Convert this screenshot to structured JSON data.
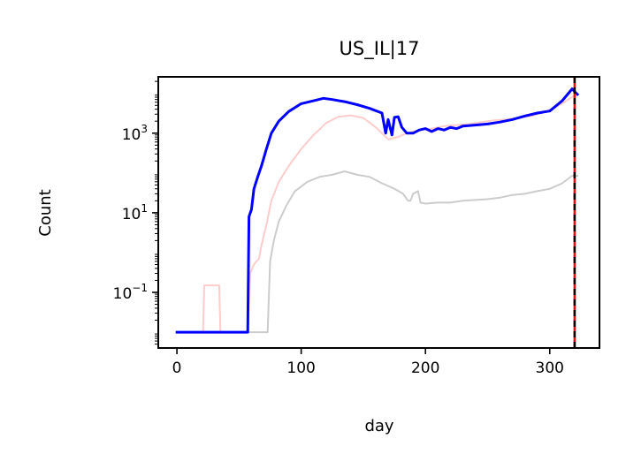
{
  "chart_data": {
    "type": "line",
    "title": "US_IL|17",
    "xlabel": "day",
    "ylabel": "Count",
    "xlim": [
      -15,
      340
    ],
    "ylim": [
      0.004,
      26000
    ],
    "yscale": "log",
    "grid": false,
    "x_ticks": [
      {
        "value": 0,
        "label": "0"
      },
      {
        "value": 100,
        "label": "100"
      },
      {
        "value": 200,
        "label": "200"
      },
      {
        "value": 300,
        "label": "300"
      }
    ],
    "y_ticks": [
      {
        "value": 0.1,
        "base": "10",
        "exp": "−1"
      },
      {
        "value": 10,
        "base": "10",
        "exp": "1"
      },
      {
        "value": 1000,
        "base": "10",
        "exp": "3"
      }
    ],
    "series": [
      {
        "color": "#cccccc",
        "width": 2,
        "points": [
          [
            -1,
            0.01
          ],
          [
            73,
            0.01
          ],
          [
            75,
            0.6
          ],
          [
            78,
            2
          ],
          [
            82,
            6
          ],
          [
            88,
            15
          ],
          [
            95,
            35
          ],
          [
            105,
            60
          ],
          [
            115,
            80
          ],
          [
            125,
            90
          ],
          [
            135,
            110
          ],
          [
            145,
            90
          ],
          [
            155,
            80
          ],
          [
            165,
            55
          ],
          [
            175,
            40
          ],
          [
            182,
            30
          ],
          [
            186,
            20
          ],
          [
            188,
            20
          ],
          [
            190,
            30
          ],
          [
            194,
            35
          ],
          [
            196,
            18
          ],
          [
            200,
            17
          ],
          [
            210,
            18
          ],
          [
            220,
            18
          ],
          [
            230,
            20
          ],
          [
            240,
            21
          ],
          [
            250,
            22
          ],
          [
            260,
            24
          ],
          [
            270,
            28
          ],
          [
            280,
            30
          ],
          [
            290,
            35
          ],
          [
            300,
            40
          ],
          [
            310,
            55
          ],
          [
            318,
            85
          ],
          [
            323,
            85
          ]
        ]
      },
      {
        "color": "#ffcccc",
        "width": 2,
        "points": [
          [
            -1,
            0.01
          ],
          [
            21,
            0.01
          ],
          [
            22,
            0.15
          ],
          [
            34,
            0.15
          ],
          [
            35,
            0.01
          ],
          [
            57,
            0.01
          ],
          [
            59,
            0.3
          ],
          [
            62,
            0.5
          ],
          [
            64,
            0.6
          ],
          [
            66,
            0.7
          ],
          [
            68,
            1.5
          ],
          [
            72,
            5
          ],
          [
            76,
            20
          ],
          [
            82,
            60
          ],
          [
            90,
            150
          ],
          [
            100,
            400
          ],
          [
            110,
            900
          ],
          [
            120,
            1800
          ],
          [
            130,
            2600
          ],
          [
            140,
            2800
          ],
          [
            150,
            2400
          ],
          [
            160,
            1400
          ],
          [
            170,
            700
          ],
          [
            178,
            800
          ],
          [
            185,
            1000
          ],
          [
            195,
            1200
          ],
          [
            205,
            1300
          ],
          [
            215,
            1500
          ],
          [
            225,
            1600
          ],
          [
            235,
            1700
          ],
          [
            245,
            1900
          ],
          [
            255,
            2100
          ],
          [
            265,
            2200
          ],
          [
            275,
            2400
          ],
          [
            285,
            2700
          ],
          [
            295,
            3300
          ],
          [
            305,
            4500
          ],
          [
            315,
            7000
          ],
          [
            320,
            9000
          ],
          [
            323,
            9000
          ]
        ]
      },
      {
        "color": "#0000ff",
        "width": 3,
        "points": [
          [
            -1,
            0.01
          ],
          [
            57,
            0.01
          ],
          [
            58,
            8
          ],
          [
            60,
            12
          ],
          [
            62,
            40
          ],
          [
            65,
            80
          ],
          [
            68,
            150
          ],
          [
            72,
            400
          ],
          [
            76,
            1000
          ],
          [
            82,
            2000
          ],
          [
            90,
            3500
          ],
          [
            100,
            5500
          ],
          [
            110,
            6500
          ],
          [
            118,
            7500
          ],
          [
            125,
            7000
          ],
          [
            135,
            6200
          ],
          [
            145,
            5200
          ],
          [
            155,
            4200
          ],
          [
            165,
            3200
          ],
          [
            168,
            1000
          ],
          [
            170,
            2200
          ],
          [
            173,
            900
          ],
          [
            175,
            2500
          ],
          [
            178,
            2600
          ],
          [
            181,
            1400
          ],
          [
            185,
            1000
          ],
          [
            190,
            1000
          ],
          [
            195,
            1200
          ],
          [
            200,
            1300
          ],
          [
            205,
            1100
          ],
          [
            210,
            1300
          ],
          [
            215,
            1200
          ],
          [
            220,
            1400
          ],
          [
            225,
            1300
          ],
          [
            230,
            1500
          ],
          [
            240,
            1600
          ],
          [
            250,
            1700
          ],
          [
            260,
            1900
          ],
          [
            270,
            2200
          ],
          [
            280,
            2700
          ],
          [
            290,
            3200
          ],
          [
            300,
            3600
          ],
          [
            310,
            6500
          ],
          [
            318,
            13000
          ],
          [
            320,
            11000
          ],
          [
            323,
            9000
          ]
        ]
      }
    ],
    "vlines": [
      {
        "x": 320,
        "color": "#ff0000",
        "width": 2.5,
        "dash": "none"
      },
      {
        "x": 320,
        "color": "#000000",
        "width": 2.5,
        "dash": "7,5"
      }
    ]
  }
}
